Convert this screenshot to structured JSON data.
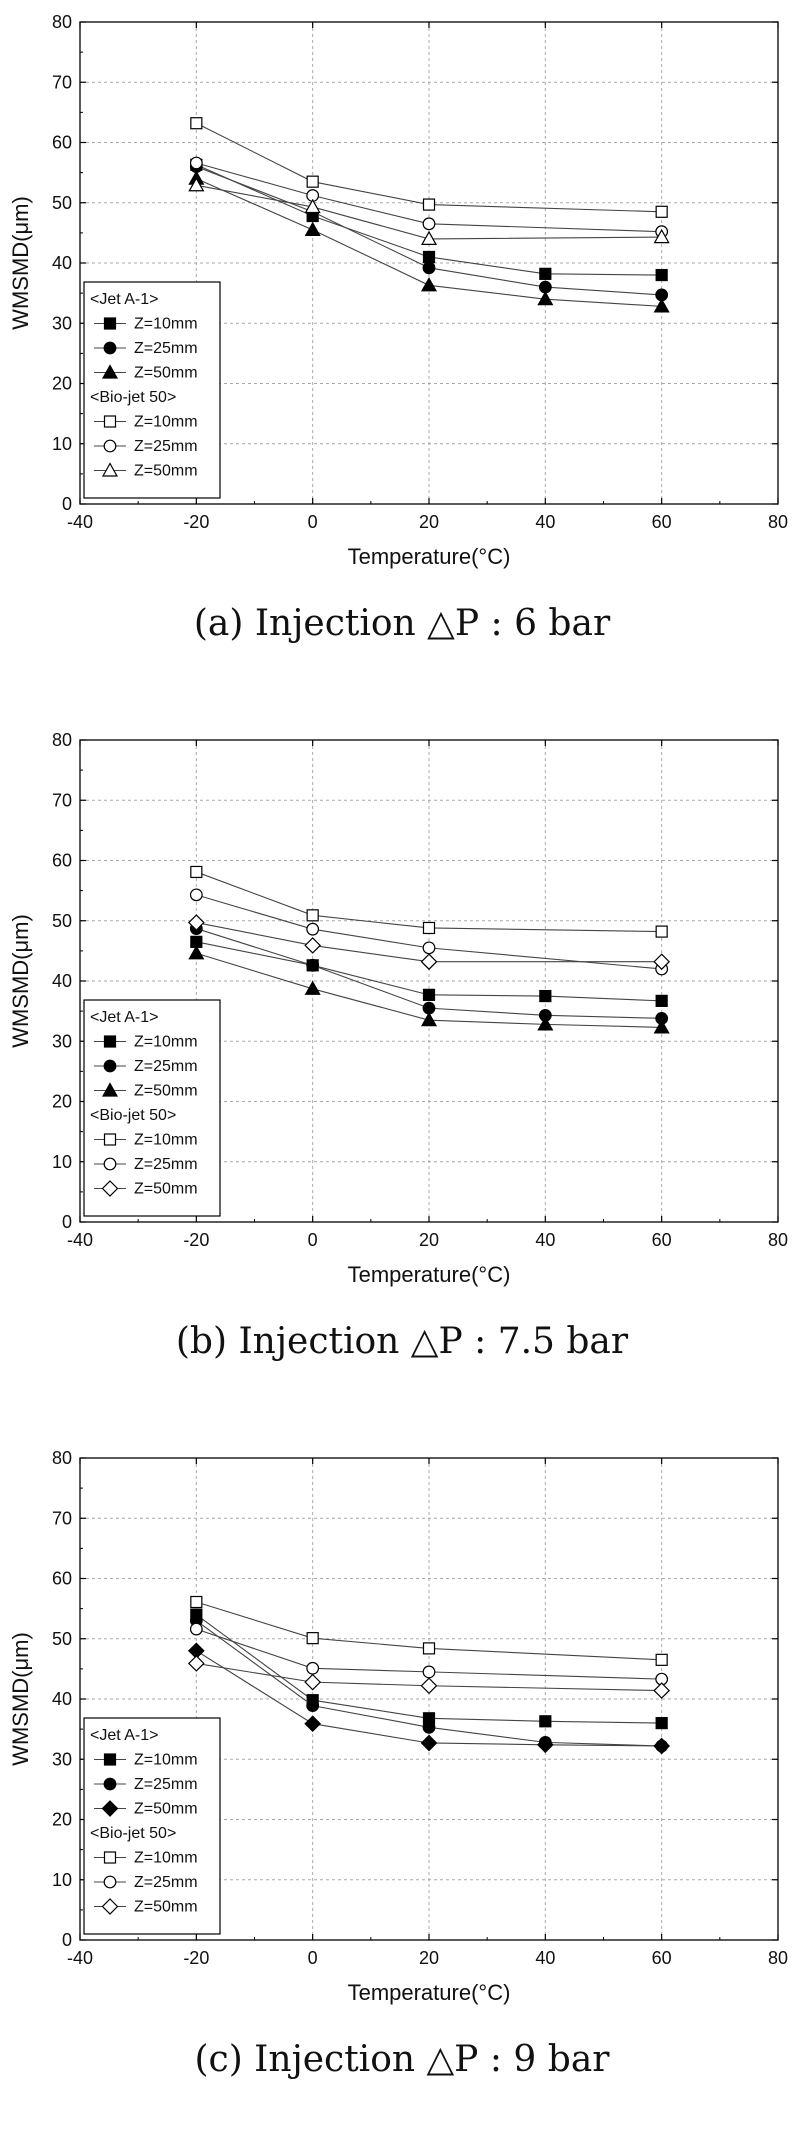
{
  "chart_data": [
    {
      "type": "line",
      "caption": "(a)  Injection  △P  :  6  bar",
      "xlabel": "Temperature(°C)",
      "ylabel": "WMSMD(μm)",
      "xlim": [
        -40,
        80
      ],
      "ylim": [
        0,
        80
      ],
      "xticks": [
        -40,
        -20,
        0,
        20,
        40,
        60,
        80
      ],
      "yticks": [
        0,
        10,
        20,
        30,
        40,
        50,
        60,
        70,
        80
      ],
      "grid": "dashed",
      "legend_position": "left",
      "legend_groups": [
        "<Jet A-1>",
        "<Bio-jet 50>"
      ],
      "series": [
        {
          "name": "Z=10mm",
          "group": "<Jet A-1>",
          "marker": "square",
          "filled": true,
          "x": [
            -20,
            0,
            20,
            40,
            60
          ],
          "y": [
            56.3,
            47.8,
            41.0,
            38.2,
            38.0
          ]
        },
        {
          "name": "Z=25mm",
          "group": "<Jet A-1>",
          "marker": "circle",
          "filled": true,
          "x": [
            -20,
            0,
            20,
            40,
            60
          ],
          "y": [
            56.0,
            48.5,
            39.2,
            36.0,
            34.7
          ]
        },
        {
          "name": "Z=50mm",
          "group": "<Jet A-1>",
          "marker": "triangle",
          "filled": true,
          "x": [
            -20,
            0,
            20,
            40,
            60
          ],
          "y": [
            54.0,
            45.5,
            36.3,
            34.0,
            32.8
          ]
        },
        {
          "name": "Z=10mm",
          "group": "<Bio-jet 50>",
          "marker": "square",
          "filled": false,
          "x": [
            -20,
            0,
            20,
            60
          ],
          "y": [
            63.2,
            53.5,
            49.7,
            48.5
          ]
        },
        {
          "name": "Z=25mm",
          "group": "<Bio-jet 50>",
          "marker": "circle",
          "filled": false,
          "x": [
            -20,
            0,
            20,
            60
          ],
          "y": [
            56.6,
            51.2,
            46.5,
            45.2
          ]
        },
        {
          "name": "Z=50mm",
          "group": "<Bio-jet 50>",
          "marker": "triangle",
          "filled": false,
          "x": [
            -20,
            0,
            20,
            60
          ],
          "y": [
            52.9,
            49.3,
            44.0,
            44.3
          ]
        }
      ]
    },
    {
      "type": "line",
      "caption": "(b)  Injection  △P  :  7.5  bar",
      "xlabel": "Temperature(°C)",
      "ylabel": "WMSMD(μm)",
      "xlim": [
        -40,
        80
      ],
      "ylim": [
        0,
        80
      ],
      "xticks": [
        -40,
        -20,
        0,
        20,
        40,
        60,
        80
      ],
      "yticks": [
        0,
        10,
        20,
        30,
        40,
        50,
        60,
        70,
        80
      ],
      "grid": "dashed",
      "legend_position": "left",
      "legend_groups": [
        "<Jet A-1>",
        "<Bio-jet 50>"
      ],
      "series": [
        {
          "name": "Z=10mm",
          "group": "<Jet A-1>",
          "marker": "square",
          "filled": true,
          "x": [
            -20,
            0,
            20,
            40,
            60
          ],
          "y": [
            46.5,
            42.6,
            37.7,
            37.5,
            36.7
          ]
        },
        {
          "name": "Z=25mm",
          "group": "<Jet A-1>",
          "marker": "circle",
          "filled": true,
          "x": [
            -20,
            0,
            20,
            40,
            60
          ],
          "y": [
            48.7,
            42.6,
            35.5,
            34.3,
            33.8
          ]
        },
        {
          "name": "Z=50mm",
          "group": "<Jet A-1>",
          "marker": "triangle",
          "filled": true,
          "x": [
            -20,
            0,
            20,
            40,
            60
          ],
          "y": [
            44.6,
            38.7,
            33.5,
            32.8,
            32.3
          ]
        },
        {
          "name": "Z=10mm",
          "group": "<Bio-jet 50>",
          "marker": "square",
          "filled": false,
          "x": [
            -20,
            0,
            20,
            60
          ],
          "y": [
            58.1,
            50.9,
            48.8,
            48.2
          ]
        },
        {
          "name": "Z=25mm",
          "group": "<Bio-jet 50>",
          "marker": "circle",
          "filled": false,
          "x": [
            -20,
            0,
            20,
            60
          ],
          "y": [
            54.3,
            48.6,
            45.5,
            42.0
          ]
        },
        {
          "name": "Z=50mm",
          "group": "<Bio-jet 50>",
          "marker": "diamond",
          "filled": false,
          "x": [
            -20,
            0,
            20,
            60
          ],
          "y": [
            49.7,
            45.9,
            43.2,
            43.2
          ]
        }
      ]
    },
    {
      "type": "line",
      "caption": "(c)  Injection  △P  :  9  bar",
      "xlabel": "Temperature(°C)",
      "ylabel": "WMSMD(μm)",
      "xlim": [
        -40,
        80
      ],
      "ylim": [
        0,
        80
      ],
      "xticks": [
        -40,
        -20,
        0,
        20,
        40,
        60,
        80
      ],
      "yticks": [
        0,
        10,
        20,
        30,
        40,
        50,
        60,
        70,
        80
      ],
      "grid": "dashed",
      "legend_position": "left",
      "legend_groups": [
        "<Jet A-1>",
        "<Bio-jet 50>"
      ],
      "series": [
        {
          "name": "Z=10mm",
          "group": "<Jet A-1>",
          "marker": "square",
          "filled": true,
          "x": [
            -20,
            0,
            20,
            40,
            60
          ],
          "y": [
            54.0,
            39.8,
            36.8,
            36.3,
            36.0
          ]
        },
        {
          "name": "Z=25mm",
          "group": "<Jet A-1>",
          "marker": "circle",
          "filled": true,
          "x": [
            -20,
            0,
            20,
            40,
            60
          ],
          "y": [
            53.0,
            38.9,
            35.3,
            32.8,
            32.2
          ]
        },
        {
          "name": "Z=50mm",
          "group": "<Jet A-1>",
          "marker": "diamond",
          "filled": true,
          "x": [
            -20,
            0,
            20,
            40,
            60
          ],
          "y": [
            48.0,
            35.9,
            32.7,
            32.4,
            32.2
          ]
        },
        {
          "name": "Z=10mm",
          "group": "<Bio-jet 50>",
          "marker": "square",
          "filled": false,
          "x": [
            -20,
            0,
            20,
            60
          ],
          "y": [
            56.1,
            50.1,
            48.4,
            46.5
          ]
        },
        {
          "name": "Z=25mm",
          "group": "<Bio-jet 50>",
          "marker": "circle",
          "filled": false,
          "x": [
            -20,
            0,
            20,
            60
          ],
          "y": [
            51.6,
            45.1,
            44.5,
            43.3
          ]
        },
        {
          "name": "Z=50mm",
          "group": "<Bio-jet 50>",
          "marker": "diamond",
          "filled": false,
          "x": [
            -20,
            0,
            20,
            60
          ],
          "y": [
            45.9,
            42.8,
            42.2,
            41.4
          ]
        }
      ]
    }
  ]
}
